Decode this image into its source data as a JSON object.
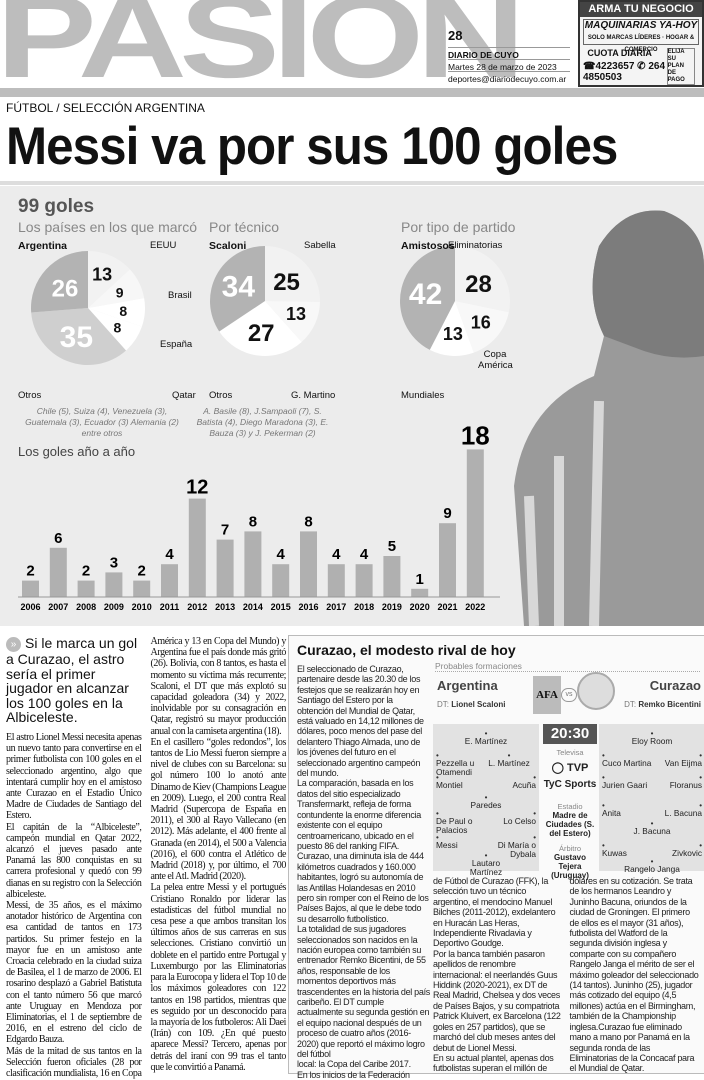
{
  "masthead": {
    "logo": "PASIÓN",
    "page": "28",
    "paper": "DIARIO DE CUYO",
    "date": "Martes 28 de marzo de 2023",
    "email": "deportes@diariodecuyo.com.ar"
  },
  "ad": {
    "top": "ARMA TU NEGOCIO",
    "brand": "MAQUINARIAS YA-HOY",
    "tagline": "SOLO MARCAS LÍDERES · HOGAR & COMERCIO",
    "cuota": "CUOTA DIARIA",
    "elija": "ELIJA SU PLAN DE PAGO",
    "phone1": "4223657",
    "phone2": "264 4850503"
  },
  "kicker": "FÚTBOL / SELECCIÓN ARGENTINA",
  "headline": "Messi va por sus 100 goles",
  "infographic": {
    "title": "99 goles",
    "bars_title": "Los goles año a año",
    "notes": [
      "Chile (5), Suiza (4), Venezuela (3), Guatemala (3), Ecuador (3) Alemania (2) entre otros",
      "A. Basile (8), J.Sampaoli (7), S. Batista (4), Diego Maradona (3), E. Bauza (3) y J. Pekerman (2)"
    ]
  },
  "chart_data": [
    {
      "type": "pie",
      "title": "Los países en los que marcó",
      "slices": [
        {
          "label": "EEUU",
          "value": 13
        },
        {
          "label": "Brasil",
          "value": 9
        },
        {
          "label": "España",
          "value": 8
        },
        {
          "label": "Qatar",
          "value": 8
        },
        {
          "label": "Otros",
          "value": 35
        },
        {
          "label": "Argentina",
          "value": 26
        }
      ],
      "colors": [
        "#f2f2f2",
        "#f7f7f7",
        "#ffffff",
        "#ffffff",
        "#cfcfcf",
        "#b3b3b3"
      ]
    },
    {
      "type": "pie",
      "title": "Por técnico",
      "slices": [
        {
          "label": "Sabella",
          "value": 25
        },
        {
          "label": "G. Martino",
          "value": 13
        },
        {
          "label": "Otros",
          "value": 27
        },
        {
          "label": "Scaloni",
          "value": 34
        }
      ],
      "colors": [
        "#f2f2f2",
        "#f8f8f8",
        "#ffffff",
        "#b3b3b3"
      ]
    },
    {
      "type": "pie",
      "title": "Por tipo de partido",
      "slices": [
        {
          "label": "Eliminatorias",
          "value": 28
        },
        {
          "label": "Copa América",
          "value": 16
        },
        {
          "label": "Mundiales",
          "value": 13
        },
        {
          "label": "Amistosos",
          "value": 42
        }
      ],
      "colors": [
        "#f2f2f2",
        "#f8f8f8",
        "#ffffff",
        "#b3b3b3"
      ]
    },
    {
      "type": "bar",
      "title": "Los goles año a año",
      "categories": [
        "2006",
        "2007",
        "2008",
        "2009",
        "2010",
        "2011",
        "2012",
        "2013",
        "2014",
        "2015",
        "2016",
        "2017",
        "2018",
        "2019",
        "2020",
        "2021",
        "2022"
      ],
      "values": [
        2,
        6,
        2,
        3,
        2,
        4,
        12,
        7,
        8,
        4,
        8,
        4,
        4,
        5,
        1,
        9,
        18
      ],
      "color": "#b0b0b0"
    }
  ],
  "article": {
    "deck": "Si le marca un gol a Curazao, el astro sería el primer jugador en alcanzar los 100 goles en la Albiceleste.",
    "paragraphs": [
      "El astro Lionel Messi necesita apenas un nuevo tanto para convertirse en el primer futbolista con 100 goles en el seleccionado argentino, algo que intentará cumplir hoy en el amistoso ante Curazao en el Estadio Único Madre de Ciudades de Santiago del Estero.",
      "El capitán de la “Albiceleste”, campeón mundial en Qatar 2022, alcanzó el jueves pasado ante Panamá las 800 conquistas en su carrera profesional y quedó con 99 dianas en su registro con la Selección albiceleste.",
      "Messi, de 35 años, es el máximo anotador histórico de Argentina con esa cantidad de tantos en 173 partidos. Su primer festejo en la mayor fue en un amistoso ante Croacia celebrado en la ciudad suiza de Basilea, el 1 de marzo de 2006. El rosarino desplazó a Gabriel Batistuta con el tanto número 56 que marcó ante Uruguay en Mendoza por Eliminatorias, el 1 de septiembre de 2016, en el estreno del ciclo de Edgardo Bauza.",
      "Más de la mitad de sus tantos en la Selección fueron oficiales (28 por clasificación mundialista, 16 en Copa América y 13 en Copa del Mundo) y Argentina fue el país donde más gritó (26). Bolivia, con 8 tantos, es hasta el momento su víctima más recurrente; Scaloni, el DT que más explotó su capacidad goleadora (34) y 2022, inolvidable por su consagración en Qatar, registró su mayor producción anual con la camiseta argentina (18).",
      "En el casillero “goles redondos”, los tantos de Lio Messi fueron siempre a nivel de clubes con su Barcelona: su gol número 100 lo anotó ante Dinamo de Kiev (Champions League en 2009). Luego, el 200 contra Real Madrid (Supercopa de España en 2011), el 300 al Rayo Vallecano (en 2012). Más adelante, el 400 frente al Granada (en 2014), el 500 a Valencia (2016), el 600 contra el Atlético de Madrid (2018) y, por último, el 700 ante el Atl. Madrid (2020).",
      "La pelea entre Messi y el portugués Cristiano Ronaldo por liderar las estadísticas del fútbol mundial no cesa pese a que ambos transitan los últimos años de sus carreras en sus selecciones. Cristiano convirtió un doblete en el partido entre Portugal y Luxemburgo por las Eliminatorias para la Eurocopa y lidera el Top 10 de los máximos goleadores con 122 tantos en 198 partidos, mientras que es seguido por un desconocido para la mayoría de los futboleros: Ali Daei (Irán) con 109. ¿En qué puesto aparece Messi? Tercero, apenas por detrás del iraní con 99 tras el tanto que le convirtió a Panamá."
    ]
  },
  "sidebar": {
    "title": "Curazao, el modesto rival de hoy",
    "col1": [
      "El seleccionado de Curazao, partenaire desde las 20.30 de los festejos que se realizarán hoy en Santiago del Estero por la obtención del Mundial de Qatar, está valuado en 14,12 millones de dólares, poco menos del pase del delantero Thiago Almada, uno de los jóvenes del futuro en el seleccionado argentino campeón del mundo.",
      "La comparación, basada en los datos del sitio especializado Transfermarkt, refleja de forma contundente la enorme diferencia existente con el equipo centroamericano, ubicado en el puesto 86 del ranking FIFA.",
      "Curazao, una diminuta isla de 444 kilómetros cuadrados y 160.000 habitantes, logró su autonomía de las Antillas Holandesas en 2010 pero sin romper con el Reino de los Países Bajos, al que le debe todo su desarrollo futbolístico.",
      "La totalidad de sus jugadores seleccionados son nacidos en la nación europea como también su entrenador Remko Bicentini, de 55 años, responsable de los momentos deportivos más trascendentes en la historia del país caribeño. El DT cumple actualmente su segunda gestión en el equipo nacional después de un proceso de cuatro años (2016-2020) que reportó el máximo logro del fútbol",
      "local: la Copa del Caribe 2017.",
      "En los inicios de la Federación"
    ],
    "col2": [
      "de Fútbol de Curazao (FFK), la selección tuvo un técnico argentino, el mendocino Manuel Bilches (2011-2012), exdelantero en Huracán Las Heras, Independiente Rivadavia y Deportivo Goudge.",
      "Por la banca también pasaron apellidos de renombre internacional: el neerlandés Guus Hiddink (2020-2021), ex DT de Real Madrid, Chelsea y dos veces de Países Bajos, y su compatriota Patrick Kluivert, ex Barcelona (122 goles en 257 partidos), que se marchó del club meses antes del debut de Lionel Messi.",
      "En su actual plantel, apenas dos futbolistas superan el millón de"
    ],
    "col3": [
      "dólares en su cotización. Se trata de los hermanos Leandro y Juninho Bacuna, oriundos de la ciudad de Groningen. El primero de ellos es el mayor (31 años), futbolista del Watford de la segunda división inglesa y comparte con su compañero Rangelo Janga el mérito de ser el máximo goleador del seleccionado (14 tantos). Juninho (25), jugador más cotizado del equipo (4,5 millones) actúa en el Birmingham, también de la Championship inglesa.Curazao fue eliminado mano a mano por Panamá en la segunda ronda de las Eliminatorias de la Concacaf para el Mundial de Qatar."
    ],
    "lineup": {
      "label": "Probables formaciones",
      "vs": "vs",
      "time": "20:30",
      "tv_label": "Televisa",
      "tv1": "TVP",
      "tv2": "TyC Sports",
      "stadium_label": "Estadio",
      "stadium": "Madre de Ciudades (S. del Estero)",
      "referee_label": "Árbitro",
      "referee": "Gustavo Tejera (Uruguay)",
      "home": {
        "name": "Argentina",
        "dt_label": "DT:",
        "dt": "Lionel Scaloni",
        "players": [
          "E. Martínez",
          "Pezzella u Otamendi",
          "L. Martínez",
          "Montiel",
          "Acuña",
          "Paredes",
          "De Paul o Palacios",
          "Lo Celso",
          "Messi",
          "Di María o Dybala",
          "Lautaro Martínez"
        ]
      },
      "away": {
        "name": "Curazao",
        "dt_label": "DT:",
        "dt": "Remko Bicentini",
        "players": [
          "Eloy Room",
          "Cuco Martina",
          "Van Eijma",
          "Jurien Gaari",
          "Floranus",
          "Anita",
          "L. Bacuna",
          "J. Bacuna",
          "Kuwas",
          "Zivkovic",
          "Rangelo Janga"
        ]
      }
    }
  }
}
